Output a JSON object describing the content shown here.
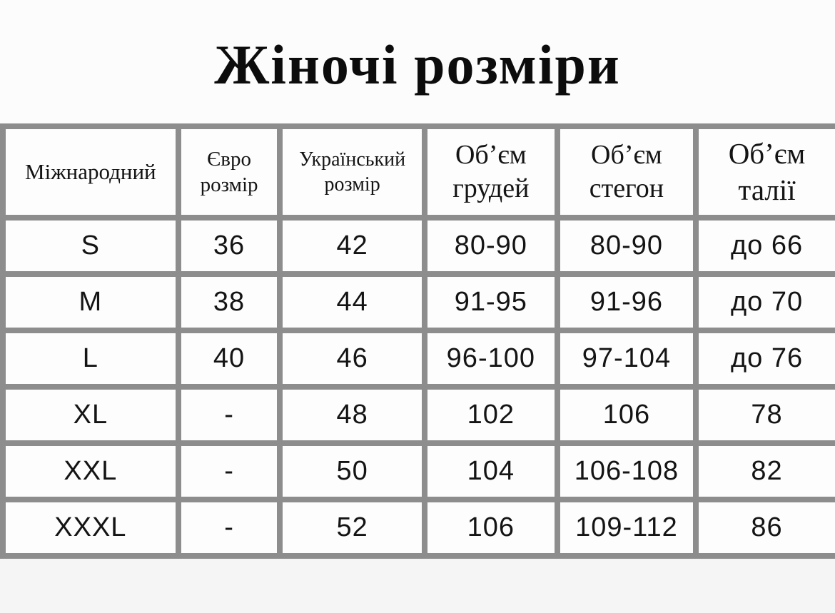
{
  "page": {
    "title": "Жіночі розміри"
  },
  "table": {
    "headers": [
      "Міжнародний",
      "Євро розмір",
      "Український розмір",
      "Об’єм грудей",
      "Об’єм стегон",
      "Об’єм талії"
    ],
    "rows": [
      [
        "S",
        "36",
        "42",
        "80-90",
        "80-90",
        "до 66"
      ],
      [
        "M",
        "38",
        "44",
        "91-95",
        "91-96",
        "до 70"
      ],
      [
        "L",
        "40",
        "46",
        "96-100",
        "97-104",
        "до 76"
      ],
      [
        "XL",
        "-",
        "48",
        "102",
        "106",
        "78"
      ],
      [
        "XXL",
        "-",
        "50",
        "104",
        "106-108",
        "82"
      ],
      [
        "XXXL",
        "-",
        "52",
        "106",
        "109-112",
        "86"
      ]
    ]
  },
  "colors": {
    "grid": "#8d8d8d",
    "cell_background": "#fdfdfd",
    "page_background": "#fcfcfc",
    "bottom_background": "#f5f5f6",
    "text": "#141414",
    "title_text": "#0c0c0c"
  }
}
